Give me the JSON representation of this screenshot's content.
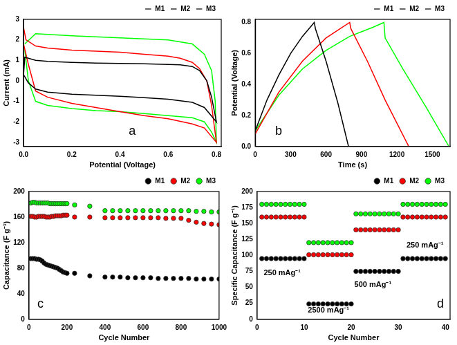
{
  "chart_data": [
    {
      "type": "line",
      "x_label": "Potential (Voltage)",
      "y_label": "Current (mA)",
      "annotations": [
        "a"
      ],
      "xlim": [
        0,
        0.82
      ],
      "ylim": [
        -3.2,
        3
      ],
      "xticks": [
        {
          "value": 0,
          "label": "0.0"
        },
        0.2,
        0.4,
        0.6,
        0.8
      ],
      "yticks": [
        -3,
        -2,
        -1,
        0,
        1,
        2,
        3
      ],
      "grid": false,
      "legend": "top",
      "series": [
        {
          "name": "M1",
          "color": "#000000",
          "x": [
            0.0,
            0.005,
            0.05,
            0.1,
            0.2,
            0.3,
            0.4,
            0.5,
            0.6,
            0.65,
            0.7,
            0.73,
            0.76,
            0.78,
            0.8,
            0.75,
            0.7,
            0.6,
            0.5,
            0.4,
            0.3,
            0.2,
            0.1,
            0.05,
            0.02,
            0.0
          ],
          "values": [
            0.3,
            1.15,
            1.0,
            0.95,
            0.9,
            0.87,
            0.85,
            0.83,
            0.8,
            0.78,
            0.7,
            0.5,
            0.0,
            -0.8,
            -2.0,
            -1.3,
            -1.05,
            -0.9,
            -0.82,
            -0.75,
            -0.7,
            -0.65,
            -0.55,
            -0.4,
            -0.1,
            0.3
          ]
        },
        {
          "name": "M2",
          "color": "#ff0000",
          "x": [
            0.0,
            0.01,
            0.05,
            0.1,
            0.2,
            0.3,
            0.4,
            0.5,
            0.6,
            0.65,
            0.7,
            0.73,
            0.76,
            0.78,
            0.8,
            0.75,
            0.7,
            0.6,
            0.5,
            0.4,
            0.3,
            0.2,
            0.1,
            0.05,
            0.02,
            0.0
          ],
          "values": [
            2.6,
            2.0,
            1.7,
            1.6,
            1.5,
            1.45,
            1.4,
            1.3,
            1.2,
            1.1,
            0.9,
            0.6,
            0.0,
            -1.2,
            -3.0,
            -2.3,
            -2.1,
            -1.85,
            -1.7,
            -1.5,
            -1.3,
            -1.1,
            -0.8,
            -0.5,
            0.8,
            1.8
          ]
        },
        {
          "name": "M3",
          "color": "#00ff00",
          "x": [
            0.005,
            0.05,
            0.2,
            0.4,
            0.6,
            0.7,
            0.75,
            0.78,
            0.795,
            0.8,
            0.78,
            0.75,
            0.7,
            0.6,
            0.5,
            0.4,
            0.3,
            0.2,
            0.1,
            0.05,
            0.02,
            0.005
          ],
          "values": [
            1.8,
            2.3,
            2.2,
            2.1,
            2.0,
            1.8,
            1.3,
            0.5,
            -1.0,
            -3.0,
            -2.5,
            -2.0,
            -1.8,
            -1.7,
            -1.6,
            -1.5,
            -1.45,
            -1.35,
            -1.2,
            -1.0,
            0.0,
            1.5
          ]
        }
      ]
    },
    {
      "type": "line",
      "x_label": "Time (s)",
      "y_label": "Potential (Voltage)",
      "annotations": [
        "b"
      ],
      "xlim": [
        0,
        1650
      ],
      "ylim": [
        0,
        0.82
      ],
      "xticks": [
        0,
        300,
        600,
        900,
        1200,
        1500
      ],
      "yticks": [
        {
          "value": 0,
          "label": "0.0"
        },
        0.2,
        0.4,
        0.6,
        0.8
      ],
      "grid": false,
      "legend": "top",
      "series": [
        {
          "name": "M1",
          "color": "#000000",
          "x": [
            0,
            100,
            200,
            300,
            400,
            500,
            510,
            600,
            700,
            790
          ],
          "values": [
            0.1,
            0.3,
            0.46,
            0.6,
            0.71,
            0.8,
            0.76,
            0.55,
            0.28,
            0.0
          ]
        },
        {
          "name": "M2",
          "color": "#ff0000",
          "x": [
            0,
            200,
            400,
            600,
            800,
            810,
            950,
            1100,
            1300
          ],
          "values": [
            0.08,
            0.35,
            0.55,
            0.7,
            0.8,
            0.76,
            0.55,
            0.3,
            0.0
          ]
        },
        {
          "name": "M3",
          "color": "#00ff00",
          "x": [
            0,
            200,
            400,
            600,
            800,
            1000,
            1090,
            1100,
            1250,
            1450,
            1640
          ],
          "values": [
            0.1,
            0.33,
            0.5,
            0.62,
            0.71,
            0.77,
            0.8,
            0.7,
            0.5,
            0.25,
            0.0
          ]
        }
      ]
    },
    {
      "type": "scatter",
      "x_label": "Cycle Number",
      "y_label": "Capacitance (F g⁻¹)",
      "annotations": [
        "c"
      ],
      "xlim": [
        0,
        1000
      ],
      "ylim": [
        0,
        200
      ],
      "xticks": [
        0,
        200,
        400,
        600,
        800,
        1000
      ],
      "yticks": [
        0,
        40,
        80,
        120,
        160,
        200
      ],
      "grid": false,
      "legend": "top",
      "marker": "circle",
      "series": [
        {
          "name": "M1",
          "color": "#000000",
          "x": [
            10,
            20,
            30,
            40,
            50,
            60,
            70,
            80,
            90,
            100,
            110,
            120,
            130,
            140,
            150,
            160,
            170,
            180,
            190,
            200,
            240,
            320,
            400,
            440,
            480,
            520,
            560,
            600,
            640,
            680,
            720,
            760,
            800,
            840,
            880,
            920,
            960,
            1000
          ],
          "values": [
            95,
            95,
            95,
            94,
            94,
            93,
            91,
            88,
            86,
            85,
            84,
            83,
            82,
            81,
            80,
            78,
            76,
            74,
            73,
            72,
            72,
            68,
            66,
            66,
            66,
            65,
            65,
            65,
            65,
            64,
            64,
            64,
            64,
            64,
            63,
            63,
            63,
            63
          ]
        },
        {
          "name": "M2",
          "color": "#ff0000",
          "x": [
            10,
            20,
            30,
            40,
            50,
            60,
            70,
            80,
            90,
            100,
            110,
            120,
            130,
            140,
            150,
            160,
            170,
            180,
            190,
            200,
            240,
            320,
            400,
            440,
            480,
            520,
            560,
            600,
            640,
            680,
            720,
            760,
            800,
            840,
            880,
            920,
            960,
            1000
          ],
          "values": [
            161,
            161,
            160,
            160,
            161,
            161,
            161,
            161,
            160,
            160,
            160,
            161,
            161,
            162,
            162,
            162,
            162,
            163,
            163,
            163,
            160,
            160,
            159,
            159,
            159,
            159,
            159,
            159,
            159,
            159,
            158,
            158,
            158,
            155,
            152,
            150,
            149,
            148
          ]
        },
        {
          "name": "M3",
          "color": "#00ff00",
          "x": [
            10,
            20,
            30,
            40,
            50,
            60,
            70,
            80,
            90,
            100,
            110,
            120,
            130,
            140,
            150,
            160,
            170,
            180,
            190,
            200,
            240,
            320,
            400,
            440,
            480,
            520,
            560,
            600,
            640,
            680,
            720,
            760,
            800,
            840,
            880,
            920,
            960,
            1000
          ],
          "values": [
            182,
            183,
            183,
            182,
            182,
            182,
            182,
            182,
            182,
            182,
            181,
            181,
            181,
            181,
            181,
            181,
            181,
            181,
            181,
            181,
            179,
            177,
            170,
            170,
            170,
            170,
            170,
            170,
            170,
            170,
            170,
            170,
            170,
            170,
            169,
            169,
            168,
            168
          ]
        }
      ]
    },
    {
      "type": "scatter",
      "x_label": "Cycle Number",
      "y_label": "Specific Capacitance (F g⁻¹)",
      "annotations": [
        "250 mAg⁻¹",
        "2500 mAg⁻¹",
        "500 mAg⁻¹",
        "250 mAg⁻¹",
        "d"
      ],
      "xlim": [
        0,
        41
      ],
      "ylim": [
        0,
        200
      ],
      "xticks": [
        0,
        10,
        20,
        30,
        40
      ],
      "yticks": [
        0,
        25,
        50,
        75,
        100,
        125,
        150,
        175,
        200
      ],
      "grid": false,
      "legend": "top",
      "marker": "circle",
      "series": [
        {
          "name": "M1",
          "color": "#000000",
          "x": [
            1,
            2,
            3,
            4,
            5,
            6,
            7,
            8,
            9,
            10,
            11,
            12,
            13,
            14,
            15,
            16,
            17,
            18,
            19,
            20,
            21,
            22,
            23,
            24,
            25,
            26,
            27,
            28,
            29,
            30,
            31,
            32,
            33,
            34,
            35,
            36,
            37,
            38,
            39,
            40
          ],
          "values": [
            95,
            95,
            95,
            95,
            95,
            95,
            95,
            95,
            95,
            95,
            24,
            24,
            24,
            24,
            24,
            24,
            24,
            24,
            24,
            24,
            75,
            75,
            75,
            75,
            75,
            75,
            75,
            75,
            75,
            75,
            95,
            95,
            95,
            95,
            95,
            95,
            95,
            95,
            95,
            95
          ]
        },
        {
          "name": "M2",
          "color": "#ff0000",
          "x": [
            1,
            2,
            3,
            4,
            5,
            6,
            7,
            8,
            9,
            10,
            11,
            12,
            13,
            14,
            15,
            16,
            17,
            18,
            19,
            20,
            21,
            22,
            23,
            24,
            25,
            26,
            27,
            28,
            29,
            30,
            31,
            32,
            33,
            34,
            35,
            36,
            37,
            38,
            39,
            40
          ],
          "values": [
            160,
            160,
            160,
            160,
            160,
            160,
            160,
            160,
            160,
            160,
            101,
            101,
            101,
            101,
            101,
            101,
            101,
            101,
            101,
            101,
            140,
            140,
            140,
            140,
            140,
            140,
            140,
            140,
            140,
            140,
            160,
            160,
            160,
            160,
            160,
            160,
            160,
            160,
            160,
            160
          ]
        },
        {
          "name": "M3",
          "color": "#00ff00",
          "x": [
            1,
            2,
            3,
            4,
            5,
            6,
            7,
            8,
            9,
            10,
            11,
            12,
            13,
            14,
            15,
            16,
            17,
            18,
            19,
            20,
            21,
            22,
            23,
            24,
            25,
            26,
            27,
            28,
            29,
            30,
            31,
            32,
            33,
            34,
            35,
            36,
            37,
            38,
            39,
            40
          ],
          "values": [
            180,
            180,
            180,
            180,
            180,
            180,
            180,
            180,
            180,
            180,
            120,
            120,
            120,
            120,
            120,
            120,
            120,
            120,
            120,
            120,
            165,
            165,
            165,
            165,
            165,
            165,
            165,
            165,
            165,
            165,
            180,
            180,
            180,
            180,
            180,
            180,
            180,
            180,
            180,
            180
          ]
        }
      ]
    }
  ]
}
